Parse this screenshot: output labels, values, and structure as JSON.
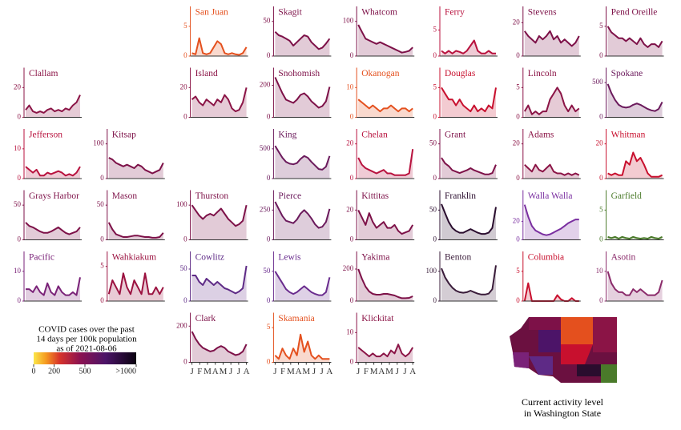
{
  "chart_data": [
    {
      "type": "area",
      "title": "San Juan",
      "color": "#e4501e",
      "ylim": [
        0,
        7
      ],
      "yticks": [
        0,
        5
      ],
      "values": [
        0.5,
        0.3,
        3,
        0.5,
        0.3,
        0.5,
        1.5,
        2.5,
        2,
        0.5,
        0.3,
        0.5,
        0.3,
        0.2,
        0.5,
        1.5
      ]
    },
    {
      "type": "area",
      "title": "Skagit",
      "color": "#7d1148",
      "ylim": [
        0,
        60
      ],
      "yticks": [
        0,
        50
      ],
      "values": [
        35,
        30,
        28,
        25,
        22,
        15,
        20,
        25,
        30,
        28,
        20,
        15,
        10,
        12,
        18,
        25
      ]
    },
    {
      "type": "area",
      "title": "Whatcom",
      "color": "#7d1148",
      "ylim": [
        0,
        120
      ],
      "yticks": [
        0,
        100
      ],
      "values": [
        90,
        70,
        50,
        45,
        40,
        35,
        40,
        35,
        30,
        25,
        20,
        15,
        10,
        12,
        15,
        25
      ]
    },
    {
      "type": "area",
      "title": "Ferry",
      "color": "#b8123e",
      "ylim": [
        0,
        8
      ],
      "yticks": [
        0,
        5
      ],
      "values": [
        1,
        0.5,
        1,
        0.5,
        1,
        0.8,
        0.5,
        1,
        2,
        3,
        1,
        0.5,
        0.5,
        1,
        0.5,
        0.5
      ]
    },
    {
      "type": "area",
      "title": "Stevens",
      "color": "#7d1148",
      "ylim": [
        0,
        25
      ],
      "yticks": [
        0,
        20
      ],
      "values": [
        15,
        12,
        10,
        8,
        12,
        10,
        12,
        15,
        10,
        12,
        8,
        10,
        8,
        6,
        8,
        12
      ]
    },
    {
      "type": "area",
      "title": "Pend Oreille",
      "color": "#7d1148",
      "ylim": [
        0,
        7
      ],
      "yticks": [
        0,
        5
      ],
      "values": [
        5,
        4,
        3.5,
        3,
        3,
        2.5,
        3,
        2.5,
        2,
        3,
        2,
        1.5,
        2,
        2,
        1.5,
        2.5
      ]
    },
    {
      "type": "area",
      "title": "Clallam",
      "color": "#8b1446",
      "ylim": [
        0,
        28
      ],
      "yticks": [
        0,
        20
      ],
      "values": [
        5,
        8,
        4,
        3,
        4,
        3,
        5,
        6,
        4,
        5,
        4,
        6,
        5,
        8,
        10,
        15
      ]
    },
    {
      "type": "area",
      "title": "Island",
      "color": "#8b1446",
      "ylim": [
        0,
        28
      ],
      "yticks": [
        0,
        20
      ],
      "values": [
        12,
        14,
        10,
        8,
        12,
        10,
        8,
        12,
        10,
        15,
        12,
        6,
        4,
        5,
        10,
        20
      ]
    },
    {
      "type": "area",
      "title": "Snohomish",
      "color": "#7d1148",
      "ylim": [
        0,
        260
      ],
      "yticks": [
        0,
        200
      ],
      "values": [
        250,
        200,
        150,
        110,
        100,
        90,
        110,
        140,
        150,
        130,
        100,
        80,
        60,
        70,
        100,
        190
      ]
    },
    {
      "type": "area",
      "title": "Okanogan",
      "color": "#e4501e",
      "ylim": [
        0,
        14
      ],
      "yticks": [
        0,
        10
      ],
      "values": [
        6,
        5,
        4,
        3,
        4,
        3,
        2,
        3,
        3,
        4,
        3,
        2,
        3,
        3,
        2,
        3
      ]
    },
    {
      "type": "area",
      "title": "Douglas",
      "color": "#c8102e",
      "ylim": [
        0,
        7
      ],
      "yticks": [
        0,
        5
      ],
      "values": [
        5,
        4,
        3,
        3,
        2,
        3,
        2,
        1.5,
        1,
        2,
        1,
        1.5,
        1,
        2,
        1.5,
        5
      ]
    },
    {
      "type": "area",
      "title": "Lincoln",
      "color": "#8b1446",
      "ylim": [
        0,
        7
      ],
      "yticks": [
        0,
        5
      ],
      "values": [
        1,
        2,
        0.5,
        1,
        0.5,
        1,
        1,
        3,
        4,
        5,
        4,
        2,
        1,
        2,
        1,
        1.5
      ]
    },
    {
      "type": "area",
      "title": "Spokane",
      "color": "#6b1a5c",
      "ylim": [
        0,
        600
      ],
      "yticks": [
        0,
        500
      ],
      "values": [
        480,
        350,
        250,
        180,
        150,
        140,
        150,
        180,
        200,
        180,
        150,
        120,
        100,
        90,
        120,
        220
      ]
    },
    {
      "type": "area",
      "title": "Jefferson",
      "color": "#b8123e",
      "ylim": [
        0,
        14
      ],
      "yticks": [
        0,
        10
      ],
      "values": [
        4,
        3,
        2,
        3,
        1,
        1,
        2,
        1.5,
        2,
        2.5,
        2,
        1,
        1.5,
        1,
        2,
        4
      ]
    },
    {
      "type": "area",
      "title": "Kitsap",
      "color": "#7d1148",
      "ylim": [
        0,
        120
      ],
      "yticks": [
        0,
        100
      ],
      "values": [
        60,
        55,
        45,
        40,
        35,
        40,
        35,
        30,
        40,
        35,
        25,
        20,
        15,
        20,
        25,
        45
      ]
    },
    {
      "type": "area",
      "title": "King",
      "color": "#6b1a5c",
      "ylim": [
        0,
        700
      ],
      "yticks": [
        0,
        500
      ],
      "values": [
        550,
        450,
        350,
        280,
        250,
        240,
        260,
        330,
        380,
        350,
        280,
        220,
        160,
        150,
        200,
        380
      ]
    },
    {
      "type": "area",
      "title": "Chelan",
      "color": "#b8123e",
      "ylim": [
        0,
        24
      ],
      "yticks": [
        0,
        20
      ],
      "values": [
        12,
        8,
        6,
        5,
        4,
        3,
        4,
        5,
        3,
        3,
        2,
        2,
        2,
        2,
        3,
        17
      ]
    },
    {
      "type": "area",
      "title": "Grant",
      "color": "#7d1148",
      "ylim": [
        0,
        60
      ],
      "yticks": [
        0,
        50
      ],
      "values": [
        30,
        22,
        18,
        12,
        10,
        8,
        10,
        12,
        15,
        12,
        10,
        8,
        6,
        6,
        8,
        20
      ]
    },
    {
      "type": "area",
      "title": "Adams",
      "color": "#8b1446",
      "ylim": [
        0,
        24
      ],
      "yticks": [
        0,
        20
      ],
      "values": [
        8,
        6,
        4,
        8,
        5,
        4,
        6,
        8,
        4,
        3,
        3,
        2,
        3,
        2,
        3,
        2
      ]
    },
    {
      "type": "area",
      "title": "Whitman",
      "color": "#c8102e",
      "ylim": [
        0,
        24
      ],
      "yticks": [
        0,
        20
      ],
      "values": [
        3,
        2,
        3,
        2,
        2,
        10,
        8,
        15,
        10,
        12,
        8,
        3,
        1,
        1,
        1,
        2
      ]
    },
    {
      "type": "area",
      "title": "Grays Harbor",
      "color": "#7d1148",
      "ylim": [
        0,
        60
      ],
      "yticks": [
        0,
        50
      ],
      "values": [
        25,
        20,
        18,
        15,
        12,
        10,
        10,
        12,
        15,
        18,
        14,
        10,
        8,
        10,
        12,
        18
      ]
    },
    {
      "type": "area",
      "title": "Mason",
      "color": "#7d1148",
      "ylim": [
        0,
        60
      ],
      "yticks": [
        0,
        50
      ],
      "values": [
        25,
        15,
        8,
        6,
        4,
        4,
        5,
        6,
        6,
        5,
        4,
        4,
        3,
        3,
        4,
        10
      ]
    },
    {
      "type": "area",
      "title": "Thurston",
      "color": "#7d1148",
      "ylim": [
        0,
        120
      ],
      "yticks": [
        0,
        100
      ],
      "values": [
        100,
        85,
        70,
        60,
        70,
        75,
        70,
        80,
        90,
        75,
        60,
        50,
        40,
        45,
        55,
        100
      ]
    },
    {
      "type": "area",
      "title": "Pierce",
      "color": "#6b1a5c",
      "ylim": [
        0,
        350
      ],
      "yticks": [
        0,
        250
      ],
      "values": [
        320,
        260,
        200,
        160,
        150,
        140,
        170,
        220,
        250,
        220,
        180,
        130,
        100,
        110,
        150,
        260
      ]
    },
    {
      "type": "area",
      "title": "Kittitas",
      "color": "#7d1148",
      "ylim": [
        0,
        28
      ],
      "yticks": [
        0,
        20
      ],
      "values": [
        20,
        15,
        10,
        18,
        12,
        8,
        10,
        12,
        8,
        8,
        10,
        6,
        4,
        5,
        6,
        10
      ]
    },
    {
      "type": "area",
      "title": "Franklin",
      "color": "#2a0d2e",
      "ylim": [
        0,
        70
      ],
      "yticks": [
        0,
        50
      ],
      "values": [
        60,
        45,
        30,
        20,
        15,
        12,
        12,
        15,
        18,
        15,
        12,
        10,
        10,
        12,
        20,
        55
      ]
    },
    {
      "type": "area",
      "title": "Walla Walla",
      "color": "#7a2fa0",
      "ylim": [
        0,
        45
      ],
      "yticks": [
        0,
        20
      ],
      "values": [
        38,
        25,
        15,
        10,
        8,
        6,
        5,
        6,
        8,
        10,
        12,
        15,
        18,
        20,
        22,
        22
      ]
    },
    {
      "type": "area",
      "title": "Garfield",
      "color": "#4a7a2a",
      "ylim": [
        0,
        7
      ],
      "yticks": [
        0,
        5
      ],
      "values": [
        0.5,
        0.3,
        0.5,
        0.2,
        0.5,
        0.3,
        0.2,
        0.5,
        0.3,
        0.2,
        0.3,
        0.2,
        0.5,
        0.3,
        0.2,
        0.5
      ]
    },
    {
      "type": "area",
      "title": "Pacific",
      "color": "#7a2278",
      "ylim": [
        0,
        14
      ],
      "yticks": [
        0,
        10
      ],
      "values": [
        4,
        4,
        3,
        5,
        3,
        2,
        6,
        3,
        2,
        5,
        3,
        2,
        2,
        3,
        2,
        8
      ]
    },
    {
      "type": "area",
      "title": "Wahkiakum",
      "color": "#9b1240",
      "ylim": [
        0,
        6
      ],
      "yticks": [
        0,
        5
      ],
      "values": [
        1,
        3,
        2,
        1,
        4,
        2,
        1,
        3,
        2,
        1,
        4,
        1,
        1,
        2,
        1,
        2
      ]
    },
    {
      "type": "area",
      "title": "Cowlitz",
      "color": "#5e2a86",
      "ylim": [
        0,
        65
      ],
      "yticks": [
        0,
        50
      ],
      "values": [
        40,
        40,
        30,
        25,
        35,
        30,
        25,
        30,
        25,
        20,
        18,
        15,
        12,
        15,
        20,
        55
      ]
    },
    {
      "type": "area",
      "title": "Lewis",
      "color": "#6a2c8e",
      "ylim": [
        0,
        70
      ],
      "yticks": [
        0,
        50
      ],
      "values": [
        50,
        40,
        30,
        20,
        15,
        12,
        15,
        20,
        25,
        20,
        15,
        12,
        10,
        10,
        15,
        40
      ]
    },
    {
      "type": "area",
      "title": "Yakima",
      "color": "#7d1148",
      "ylim": [
        0,
        260
      ],
      "yticks": [
        0,
        200
      ],
      "values": [
        200,
        140,
        90,
        60,
        45,
        40,
        40,
        45,
        45,
        40,
        35,
        25,
        18,
        18,
        20,
        30
      ]
    },
    {
      "type": "area",
      "title": "Benton",
      "color": "#3a1c3a",
      "ylim": [
        0,
        140
      ],
      "yticks": [
        0,
        100
      ],
      "values": [
        110,
        80,
        60,
        45,
        35,
        30,
        28,
        30,
        35,
        30,
        25,
        22,
        22,
        25,
        40,
        120
      ]
    },
    {
      "type": "area",
      "title": "Columbia",
      "color": "#c8102e",
      "ylim": [
        0,
        7
      ],
      "yticks": [
        0,
        5
      ],
      "values": [
        0,
        3,
        0,
        0,
        0,
        0,
        0,
        0,
        0,
        1,
        0.3,
        0,
        0,
        0.5,
        0,
        0
      ]
    },
    {
      "type": "area",
      "title": "Asotin",
      "color": "#8a2a6a",
      "ylim": [
        0,
        14
      ],
      "yticks": [
        0,
        10
      ],
      "values": [
        10,
        6,
        4,
        3,
        3,
        2,
        2,
        4,
        3,
        4,
        3,
        2,
        2,
        2,
        3,
        7
      ]
    },
    {
      "type": "area",
      "title": "Clark",
      "color": "#7d1148",
      "ylim": [
        0,
        230
      ],
      "yticks": [
        0,
        200
      ],
      "xticks": [
        "J",
        "F",
        "M",
        "A",
        "M",
        "J",
        "J",
        "A"
      ],
      "values": [
        170,
        130,
        100,
        80,
        70,
        60,
        65,
        80,
        90,
        80,
        60,
        50,
        40,
        45,
        60,
        100
      ]
    },
    {
      "type": "area",
      "title": "Skamania",
      "color": "#e4501e",
      "ylim": [
        0,
        6
      ],
      "yticks": [
        0,
        5
      ],
      "xticks": [
        "J",
        "F",
        "M",
        "A",
        "M",
        "J",
        "J",
        "A"
      ],
      "values": [
        1,
        0.5,
        2,
        1,
        0.5,
        2,
        1,
        4,
        1.5,
        3,
        1,
        0.5,
        1,
        0.5,
        0.5,
        0.5
      ]
    },
    {
      "type": "area",
      "title": "Klickitat",
      "color": "#8b1446",
      "ylim": [
        0,
        14
      ],
      "yticks": [
        0,
        10
      ],
      "xticks": [
        "J",
        "F",
        "M",
        "A",
        "M",
        "J",
        "J",
        "A"
      ],
      "values": [
        5,
        4,
        3,
        2,
        3,
        2,
        2,
        3,
        2,
        4,
        3,
        6,
        3,
        2,
        3,
        5
      ]
    }
  ],
  "legend": {
    "title": [
      "COVID cases over the past",
      "14 days per 100k population",
      "as of 2021-08-06"
    ],
    "lim": [
      0,
      1000
    ],
    "ticks": [
      0,
      200,
      500,
      {
        "value": 1000,
        "label": ">1000"
      }
    ]
  },
  "map": {
    "caption": [
      "Current activity level",
      "in Washington State"
    ]
  }
}
